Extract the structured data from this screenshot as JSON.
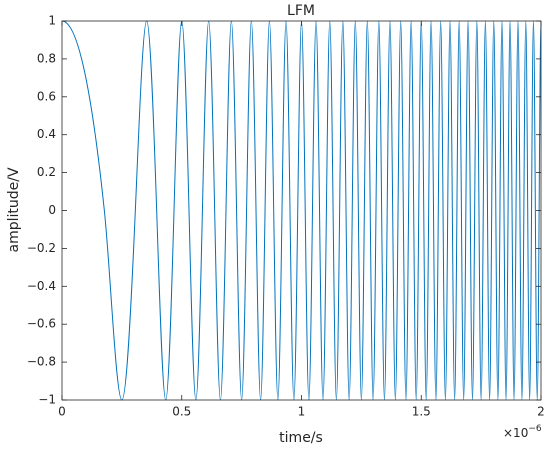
{
  "chart_data": {
    "type": "line",
    "title": "LFM",
    "x_label": "time/s",
    "y_label": "amplitude/V",
    "x_multiplier": {
      "base": "×10",
      "exponent": "−6"
    },
    "color": "#0072bd",
    "xlim": [
      0,
      2
    ],
    "ylim": [
      -1,
      1
    ],
    "xticks": [
      0,
      0.5,
      1,
      1.5,
      2
    ],
    "yticks": [
      {
        "value": -1,
        "label": "−1"
      },
      {
        "value": -0.8,
        "label": "−0.8"
      },
      {
        "value": -0.6,
        "label": "−0.6"
      },
      {
        "value": -0.4,
        "label": "−0.4"
      },
      {
        "value": -0.2,
        "label": "−0.2"
      },
      0,
      0.2,
      0.4,
      0.6,
      0.8,
      1
    ],
    "x": [
      0,
      0.1768,
      0.25,
      0.3062,
      0.3536,
      0.3953,
      0.433,
      0.4677,
      0.5,
      0.5303,
      0.559,
      0.5863,
      0.6124,
      0.6374,
      0.6614,
      0.6847,
      0.7071,
      0.7289,
      0.75,
      0.7706,
      0.7906,
      0.8101,
      0.8292,
      0.8478,
      0.866,
      0.8839,
      0.9014,
      0.9186,
      0.9354,
      0.952,
      0.9682,
      0.9843,
      1,
      1.0155,
      1.0308,
      1.0458,
      1.0607,
      1.0753,
      1.0897,
      1.104,
      1.118,
      1.1319,
      1.1456,
      1.1592,
      1.1726,
      1.1859,
      1.199,
      1.2119,
      1.2247,
      1.2374,
      1.25,
      1.2624,
      1.2748,
      1.287,
      1.299,
      1.311,
      1.3229,
      1.3346,
      1.3463,
      1.3578,
      1.3693,
      1.3807,
      1.3919,
      1.4031,
      1.4142,
      1.4252,
      1.4361,
      1.447,
      1.4577,
      1.4684,
      1.479,
      1.4895,
      1.5,
      1.5104,
      1.5207,
      1.5309,
      1.5411,
      1.5512,
      1.5612,
      1.5712,
      1.5811,
      1.591,
      1.6008,
      1.6105,
      1.6202,
      1.6298,
      1.6394,
      1.6489,
      1.6583,
      1.6677,
      1.6771,
      1.6863,
      1.6956,
      1.7048,
      1.7139,
      1.723,
      1.7321,
      1.741,
      1.75,
      1.7589,
      1.7678,
      1.7766,
      1.7854,
      1.7941,
      1.8028,
      1.8114,
      1.82,
      1.8286,
      1.8371,
      1.8456,
      1.854,
      1.8625,
      1.8708,
      1.8792,
      1.8875,
      1.8957,
      1.9039,
      1.9121,
      1.9203,
      1.9284,
      1.9365,
      1.9445,
      1.9526,
      1.9605,
      1.9685,
      1.9764,
      1.9843,
      1.9922,
      2
    ],
    "values": [
      1,
      0,
      -1,
      0,
      1,
      0,
      -1,
      0,
      1,
      0,
      -1,
      0,
      1,
      0,
      -1,
      0,
      1,
      0,
      -1,
      0,
      1,
      0,
      -1,
      0,
      1,
      0,
      -1,
      0,
      1,
      0,
      -1,
      0,
      1,
      0,
      -1,
      0,
      1,
      0,
      -1,
      0,
      1,
      0,
      -1,
      0,
      1,
      0,
      -1,
      0,
      1,
      0,
      -1,
      0,
      1,
      0,
      -1,
      0,
      1,
      0,
      -1,
      0,
      1,
      0,
      -1,
      0,
      1,
      0,
      -1,
      0,
      1,
      0,
      -1,
      0,
      1,
      0,
      -1,
      0,
      1,
      0,
      -1,
      0,
      1,
      0,
      -1,
      0,
      1,
      0,
      -1,
      0,
      1,
      0,
      -1,
      0,
      1,
      0,
      -1,
      0,
      1,
      0,
      -1,
      0,
      1,
      0,
      -1,
      0,
      1,
      0,
      -1,
      0,
      1,
      0,
      -1,
      0,
      1,
      0,
      -1,
      0,
      1,
      0,
      -1,
      0,
      1,
      0,
      -1,
      0,
      1,
      0,
      -1,
      0,
      1
    ]
  }
}
